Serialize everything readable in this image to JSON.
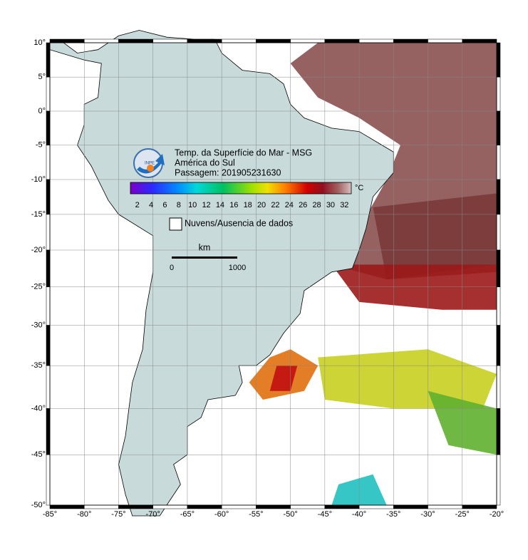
{
  "header": {
    "title": "Temp. da Superfície do Mar - MSG",
    "region": "América do Sul",
    "pass": "Passagem: 201905231630"
  },
  "logo": "INPE",
  "colorbar": {
    "labels": [
      "2",
      "4",
      "6",
      "8",
      "10",
      "12",
      "14",
      "16",
      "18",
      "20",
      "22",
      "24",
      "26",
      "28",
      "30",
      "32"
    ],
    "unit": "°C"
  },
  "legend": {
    "no_data": "Nuvens/Ausencia de dados"
  },
  "scale_bar": {
    "unit": "km",
    "start": "0",
    "end": "1000"
  },
  "axes": {
    "lat_ticks": [
      {
        "value": 10,
        "label": "10°"
      },
      {
        "value": 5,
        "label": "5°"
      },
      {
        "value": 0,
        "label": "0°"
      },
      {
        "value": -5,
        "label": "-5°"
      },
      {
        "value": -10,
        "label": "-10°"
      },
      {
        "value": -15,
        "label": "-15°"
      },
      {
        "value": -20,
        "label": "-20°"
      },
      {
        "value": -25,
        "label": "-25°"
      },
      {
        "value": -30,
        "label": "-30°"
      },
      {
        "value": -35,
        "label": "-35°"
      },
      {
        "value": -40,
        "label": "-40°"
      },
      {
        "value": -45,
        "label": "-45°"
      },
      {
        "value": -50,
        "label": "-50°"
      }
    ],
    "lon_ticks": [
      {
        "value": -85,
        "label": "-85°"
      },
      {
        "value": -80,
        "label": "-80°"
      },
      {
        "value": -75,
        "label": "-75°"
      },
      {
        "value": -70,
        "label": "-70°"
      },
      {
        "value": -65,
        "label": "-65°"
      },
      {
        "value": -60,
        "label": "-60°"
      },
      {
        "value": -55,
        "label": "-55°"
      },
      {
        "value": -50,
        "label": "-50°"
      },
      {
        "value": -45,
        "label": "-45°"
      },
      {
        "value": -40,
        "label": "-40°"
      },
      {
        "value": -35,
        "label": "-35°"
      },
      {
        "value": -30,
        "label": "-30°"
      },
      {
        "value": -25,
        "label": "-25°"
      },
      {
        "value": -20,
        "label": "-20°"
      }
    ]
  }
}
